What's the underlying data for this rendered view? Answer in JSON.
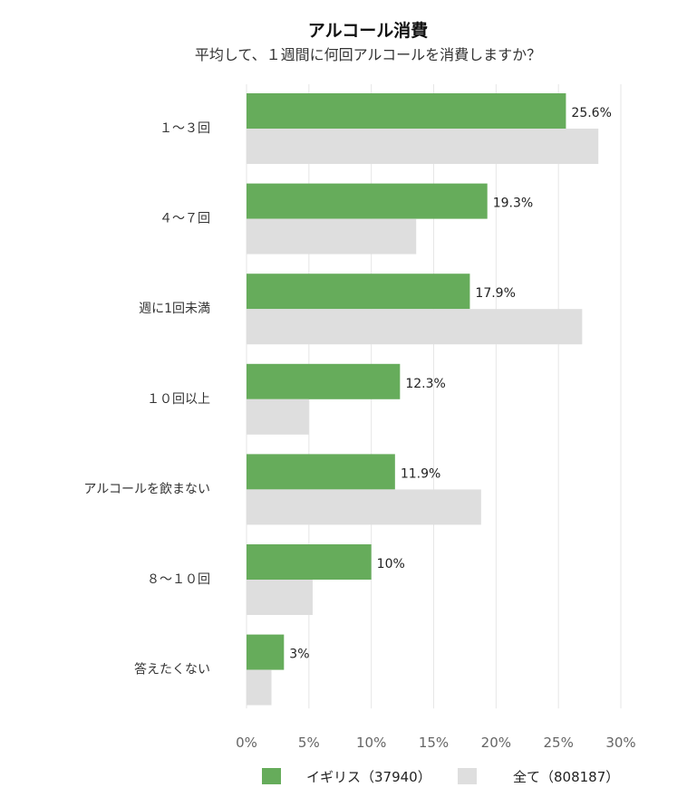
{
  "chart_data": {
    "type": "bar",
    "orientation": "horizontal",
    "title": "アルコール消費",
    "subtitle": "平均して、１週間に何回アルコールを消費しますか？",
    "categories": [
      "１～３回",
      "４～７回",
      "週に1回未満",
      "１０回以上",
      "アルコールを飲まない",
      "８～１０回",
      "答えたくない"
    ],
    "series": [
      {
        "name": "イギリス（37940）",
        "color": "#66ac5b",
        "values": [
          25.6,
          19.3,
          17.9,
          12.3,
          11.9,
          10,
          3
        ],
        "labels": [
          "25.6%",
          "19.3%",
          "17.9%",
          "12.3%",
          "11.9%",
          "10%",
          "3%"
        ]
      },
      {
        "name": "全て（808187）",
        "color": "#dedede",
        "values": [
          28.2,
          13.6,
          26.9,
          5.0,
          18.8,
          5.3,
          2.0
        ]
      }
    ],
    "xlim": [
      0,
      30
    ],
    "xticks": [
      "0%",
      "5%",
      "10%",
      "15%",
      "20%",
      "25%",
      "30%"
    ],
    "xtick_values": [
      0,
      5,
      10,
      15,
      20,
      25,
      30
    ],
    "grid": true,
    "legend_position": "bottom"
  }
}
